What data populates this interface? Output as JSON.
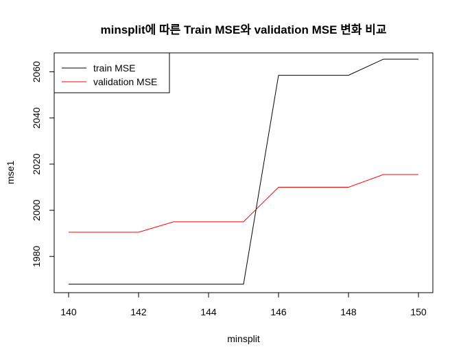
{
  "chart_data": {
    "type": "line",
    "title": "minsplit에 따른 Train MSE와 validation MSE 변화 비교",
    "xlabel": "minsplit",
    "ylabel": "mse1",
    "x": [
      140,
      141,
      142,
      143,
      144,
      145,
      146,
      147,
      148,
      149,
      150
    ],
    "xlim": [
      140,
      150
    ],
    "ylim": [
      1964.3,
      2068.2
    ],
    "x_ticks": [
      140,
      142,
      144,
      146,
      148,
      150
    ],
    "y_ticks": [
      1980,
      2000,
      2020,
      2040,
      2060
    ],
    "grid": false,
    "legend_position": "top-left",
    "series": [
      {
        "name": "train MSE",
        "color": "#000000",
        "values": [
          1968,
          1968,
          1968,
          1968,
          1968,
          1968,
          2058.5,
          2058.5,
          2058.5,
          2065.5,
          2065.5
        ]
      },
      {
        "name": "validation MSE",
        "color": "#ff0000",
        "values": [
          1990.5,
          1990.5,
          1990.5,
          1995,
          1995,
          1995,
          2010,
          2010,
          2010,
          2015.5,
          2015.5
        ]
      }
    ]
  }
}
